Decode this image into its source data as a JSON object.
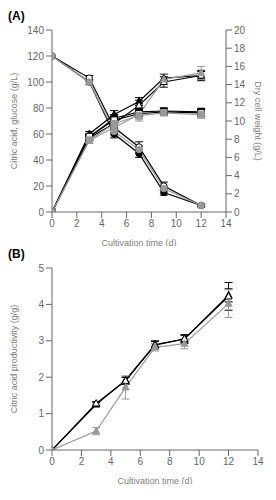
{
  "chart_data": [
    {
      "type": "line",
      "title": "(A)",
      "x_label": "Cultivation time (d)",
      "y_label": "Citric acid, glucose (g/L)",
      "y2_label": "Dry cell weight (g/L)",
      "x": [
        0,
        3,
        5,
        7,
        9,
        12
      ],
      "xlim": [
        0,
        14
      ],
      "xticks": [
        0,
        2,
        4,
        6,
        8,
        10,
        12,
        14
      ],
      "ylim": [
        0,
        140
      ],
      "yticks": [
        0,
        20,
        40,
        60,
        80,
        100,
        120,
        140
      ],
      "y2lim": [
        0,
        20
      ],
      "y2ticks": [
        0,
        2,
        4,
        6,
        8,
        10,
        12,
        14,
        16,
        18,
        20
      ],
      "grid": false,
      "series": [
        {
          "color": "#000000",
          "marker": "circle",
          "values": [
            120,
            100,
            60,
            45,
            15,
            5
          ],
          "errors": [
            0,
            2,
            3,
            3,
            2,
            1
          ]
        },
        {
          "color": "#000000",
          "marker": "circle-open",
          "values": [
            120,
            103,
            65,
            50,
            20,
            5
          ],
          "errors": [
            0,
            2,
            4,
            4,
            3,
            1
          ]
        },
        {
          "color": "#999999",
          "marker": "circle",
          "values": [
            120,
            100,
            62,
            48,
            18,
            5
          ],
          "errors": [
            0,
            2,
            3,
            3,
            2,
            1
          ]
        },
        {
          "color": "#000000",
          "marker": "triangle",
          "values": [
            0,
            60,
            75,
            85,
            103,
            105
          ],
          "errors": [
            0,
            2,
            3,
            3,
            3,
            3
          ]
        },
        {
          "color": "#000000",
          "marker": "triangle-open",
          "values": [
            0,
            57,
            68,
            82,
            100,
            105
          ],
          "errors": [
            0,
            2,
            4,
            4,
            4,
            4
          ]
        },
        {
          "color": "#999999",
          "marker": "triangle",
          "values": [
            0,
            55,
            65,
            75,
            102,
            107
          ],
          "errors": [
            0,
            2,
            5,
            5,
            4,
            5
          ]
        },
        {
          "color": "#000000",
          "marker": "square",
          "axis": "y2",
          "values": [
            0,
            8.2,
            10.3,
            11.0,
            11.1,
            11.0
          ],
          "errors": [
            0,
            0.3,
            0.4,
            0.4,
            0.3,
            0.4
          ]
        },
        {
          "color": "#000000",
          "marker": "square-open",
          "axis": "y2",
          "values": [
            0,
            8.3,
            10.1,
            10.8,
            11.0,
            10.9
          ],
          "errors": [
            0,
            0.3,
            0.4,
            0.4,
            0.3,
            0.4
          ]
        },
        {
          "color": "#999999",
          "marker": "square",
          "axis": "y2",
          "values": [
            0,
            7.9,
            9.7,
            10.6,
            10.9,
            10.7
          ],
          "errors": [
            0,
            0.3,
            0.4,
            0.4,
            0.3,
            0.4
          ]
        }
      ]
    },
    {
      "type": "line",
      "title": "(B)",
      "x_label": "Cultivation time (d)",
      "y_label": "Citric acid productivity (g/g)",
      "x": [
        0,
        3,
        5,
        7,
        9,
        12
      ],
      "xlim": [
        0,
        14
      ],
      "xticks": [
        0,
        2,
        4,
        6,
        8,
        10,
        12,
        14
      ],
      "ylim": [
        0,
        5
      ],
      "yticks": [
        0,
        1,
        2,
        3,
        4,
        5
      ],
      "grid": false,
      "series": [
        {
          "color": "#000000",
          "marker": "triangle",
          "values": [
            0,
            1.25,
            1.92,
            2.9,
            3.05,
            4.25
          ],
          "errors": [
            0,
            0.05,
            0.08,
            0.1,
            0.1,
            0.18
          ]
        },
        {
          "color": "#000000",
          "marker": "triangle-open",
          "values": [
            0,
            1.28,
            1.9,
            2.88,
            3.05,
            4.22
          ],
          "errors": [
            0,
            0.05,
            0.1,
            0.1,
            0.12,
            0.38
          ]
        },
        {
          "color": "#999999",
          "marker": "triangle",
          "values": [
            0,
            0.52,
            1.72,
            2.82,
            2.92,
            4.02
          ],
          "errors": [
            0,
            0.1,
            0.32,
            0.1,
            0.14,
            0.38
          ]
        }
      ]
    }
  ]
}
